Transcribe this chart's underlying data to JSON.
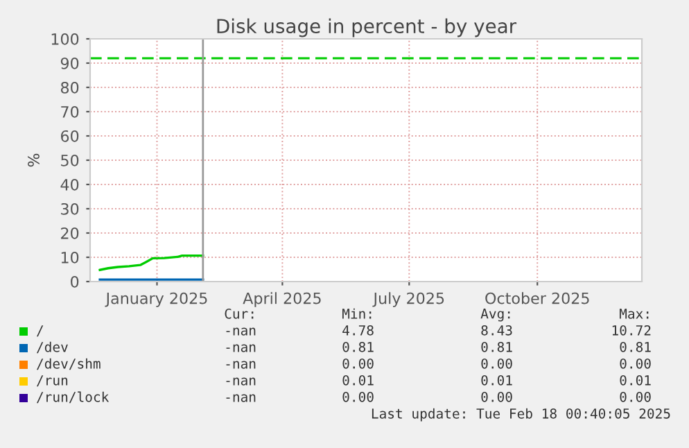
{
  "chart_data": {
    "type": "line",
    "title": "Disk usage in percent - by year",
    "ylabel": "%",
    "xlim": [
      "2024-11-29",
      "2025-12-30"
    ],
    "xticks": [
      {
        "value": "2025-01-16",
        "label": "January 2025"
      },
      {
        "value": "2025-04-16",
        "label": "April 2025"
      },
      {
        "value": "2025-07-16",
        "label": "July 2025"
      },
      {
        "value": "2025-10-16",
        "label": "October 2025"
      }
    ],
    "ylim": [
      0,
      100
    ],
    "yticks": [
      0,
      10,
      20,
      30,
      40,
      50,
      60,
      70,
      80,
      90,
      100
    ],
    "grid": true,
    "legend": "bottom",
    "marker": "none",
    "line_style": "solid",
    "series": [
      {
        "name": "/",
        "color": "#00cc00",
        "x": [
          "2024-12-06",
          "2024-12-12",
          "2024-12-19",
          "2024-12-27",
          "2025-01-04",
          "2025-01-08",
          "2025-01-13",
          "2025-01-21",
          "2025-01-31",
          "2025-02-03",
          "2025-02-18"
        ],
        "values": [
          4.8,
          5.5,
          6.0,
          6.3,
          6.8,
          8.0,
          9.6,
          9.7,
          10.2,
          10.7,
          10.7
        ]
      },
      {
        "name": "/dev",
        "color": "#0066b3",
        "x": [
          "2024-12-06",
          "2025-02-18"
        ],
        "values": [
          0.8,
          0.8
        ]
      },
      {
        "name": "/dev/shm",
        "color": "#ff8000"
      },
      {
        "name": "/run",
        "color": "#ffcc00"
      },
      {
        "name": "/run/lock",
        "color": "#330099"
      }
    ],
    "ref_lines": [
      {
        "axis": "y",
        "value": 92,
        "color": "#00cc00",
        "line_style": "dashed"
      },
      {
        "axis": "x",
        "value": "2025-02-18",
        "color": "#999999",
        "line_style": "solid"
      }
    ],
    "annotations": [
      "Cur:",
      "Min:",
      "Avg:",
      "Max:",
      "-nan",
      "4.78",
      "8.43",
      "10.72",
      "-nan",
      "0.81",
      "0.81",
      "0.81",
      "-nan",
      "0.00",
      "0.00",
      "0.00",
      "-nan",
      "0.01",
      "0.01",
      "0.01",
      "-nan",
      "0.00",
      "0.00",
      "0.00",
      "Last update: Tue Feb 18 00:40:05 2025"
    ]
  }
}
